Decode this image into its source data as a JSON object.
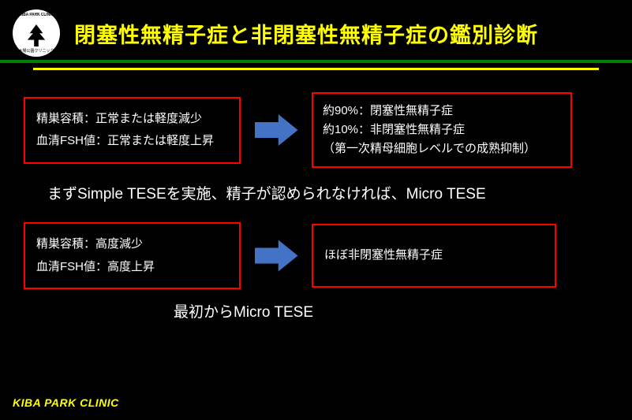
{
  "logo": {
    "top_text": "KIBA PARK CLINIC",
    "bottom_text": "木場公園クリニック"
  },
  "title": "閉塞性無精子症と非閉塞性無精子症の鑑別診断",
  "colors": {
    "background": "#000000",
    "title_text": "#ffff00",
    "hr_green": "#008000",
    "hr_yellow": "#ffff00",
    "box_border": "#ff0000",
    "body_text": "#ffffff",
    "arrow_fill": "#4472c4",
    "footer_text": "#ffff00"
  },
  "flow1": {
    "left_line1": "精巣容積：正常または軽度減少",
    "left_line2": "血清FSH値：正常または軽度上昇",
    "right_line1": "約90%：閉塞性無精子症",
    "right_line2": "約10%：非閉塞性無精子症",
    "right_line3": "（第一次精母細胞レベルでの成熟抑制）"
  },
  "mid_text": "まずSimple TESEを実施、精子が認められなければ、Micro TESE",
  "flow2": {
    "left_line1": "精巣容積：高度減少",
    "left_line2": "血清FSH値：高度上昇",
    "right_line1": "ほぼ非閉塞性無精子症"
  },
  "bot_text": "最初からMicro TESE",
  "footer": "KIBA PARK CLINIC"
}
